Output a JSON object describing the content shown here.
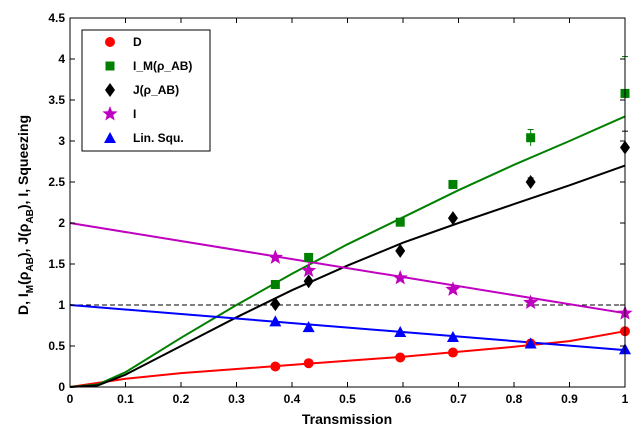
{
  "chart_data": {
    "type": "scatter",
    "xlabel": "Transmission",
    "ylabel": "D, I_M(ρ_AB), J(ρ_AB), I, Squeezing",
    "xlim": [
      0,
      1
    ],
    "ylim": [
      0,
      4.5
    ],
    "x_ticks": [
      "0",
      "0.1",
      "0.2",
      "0.3",
      "0.4",
      "0.5",
      "0.6",
      "0.7",
      "0.8",
      "0.9",
      "1"
    ],
    "y_ticks": [
      "0",
      "0.5",
      "1",
      "1.5",
      "2",
      "2.5",
      "3",
      "3.5",
      "4",
      "4.5"
    ],
    "grid": false,
    "legend_position": "top-left",
    "reference_line": {
      "y": 1,
      "style": "dashed",
      "color": "#000000"
    },
    "series": [
      {
        "name": "D",
        "color": "#ff0000",
        "marker": "circle",
        "points": [
          [
            0.37,
            0.25
          ],
          [
            0.43,
            0.29
          ],
          [
            0.595,
            0.36
          ],
          [
            0.69,
            0.42
          ],
          [
            0.83,
            0.53
          ],
          [
            1.0,
            0.68
          ]
        ],
        "curve": [
          [
            0,
            0
          ],
          [
            0.1,
            0.1
          ],
          [
            0.2,
            0.17
          ],
          [
            0.3,
            0.22
          ],
          [
            0.4,
            0.27
          ],
          [
            0.5,
            0.32
          ],
          [
            0.6,
            0.37
          ],
          [
            0.7,
            0.43
          ],
          [
            0.8,
            0.49
          ],
          [
            0.9,
            0.56
          ],
          [
            1.0,
            0.68
          ]
        ]
      },
      {
        "name": "I_M(ρ_AB)",
        "color": "#008000",
        "marker": "square",
        "points": [
          [
            0.37,
            1.25
          ],
          [
            0.43,
            1.58
          ],
          [
            0.595,
            2.01
          ],
          [
            0.69,
            2.47
          ],
          [
            0.83,
            3.04
          ],
          [
            1.0,
            3.58
          ]
        ],
        "errors": [
          0,
          0,
          0,
          0,
          0.1,
          0.45
        ],
        "curve": [
          [
            0,
            0
          ],
          [
            0.05,
            0.03
          ],
          [
            0.1,
            0.18
          ],
          [
            0.2,
            0.6
          ],
          [
            0.3,
            1.0
          ],
          [
            0.4,
            1.38
          ],
          [
            0.5,
            1.74
          ],
          [
            0.6,
            2.07
          ],
          [
            0.7,
            2.4
          ],
          [
            0.8,
            2.71
          ],
          [
            0.9,
            3.0
          ],
          [
            1.0,
            3.3
          ]
        ]
      },
      {
        "name": "J(ρ_AB)",
        "color": "#000000",
        "marker": "diamond",
        "points": [
          [
            0.37,
            1.01
          ],
          [
            0.43,
            1.29
          ],
          [
            0.595,
            1.66
          ],
          [
            0.69,
            2.06
          ],
          [
            0.83,
            2.5
          ],
          [
            1.0,
            2.92
          ]
        ],
        "errors": [
          0,
          0,
          0,
          0,
          0.05,
          0.2
        ],
        "curve": [
          [
            0,
            0
          ],
          [
            0.05,
            0.02
          ],
          [
            0.1,
            0.15
          ],
          [
            0.2,
            0.5
          ],
          [
            0.3,
            0.85
          ],
          [
            0.4,
            1.18
          ],
          [
            0.5,
            1.48
          ],
          [
            0.6,
            1.76
          ],
          [
            0.7,
            2.0
          ],
          [
            0.8,
            2.23
          ],
          [
            0.9,
            2.46
          ],
          [
            1.0,
            2.7
          ]
        ]
      },
      {
        "name": "I",
        "color": "#c000c0",
        "marker": "star",
        "points": [
          [
            0.37,
            1.58
          ],
          [
            0.43,
            1.42
          ],
          [
            0.595,
            1.33
          ],
          [
            0.69,
            1.19
          ],
          [
            0.83,
            1.03
          ],
          [
            1.0,
            0.9
          ]
        ],
        "curve": [
          [
            0,
            2.0
          ],
          [
            1.0,
            0.9
          ]
        ]
      },
      {
        "name": "Lin. Squ.",
        "color": "#0000ff",
        "marker": "triangle",
        "points": [
          [
            0.37,
            0.8
          ],
          [
            0.43,
            0.73
          ],
          [
            0.595,
            0.67
          ],
          [
            0.69,
            0.61
          ],
          [
            0.83,
            0.53
          ],
          [
            1.0,
            0.46
          ]
        ],
        "curve": [
          [
            0,
            1.0
          ],
          [
            1.0,
            0.45
          ]
        ]
      }
    ]
  }
}
